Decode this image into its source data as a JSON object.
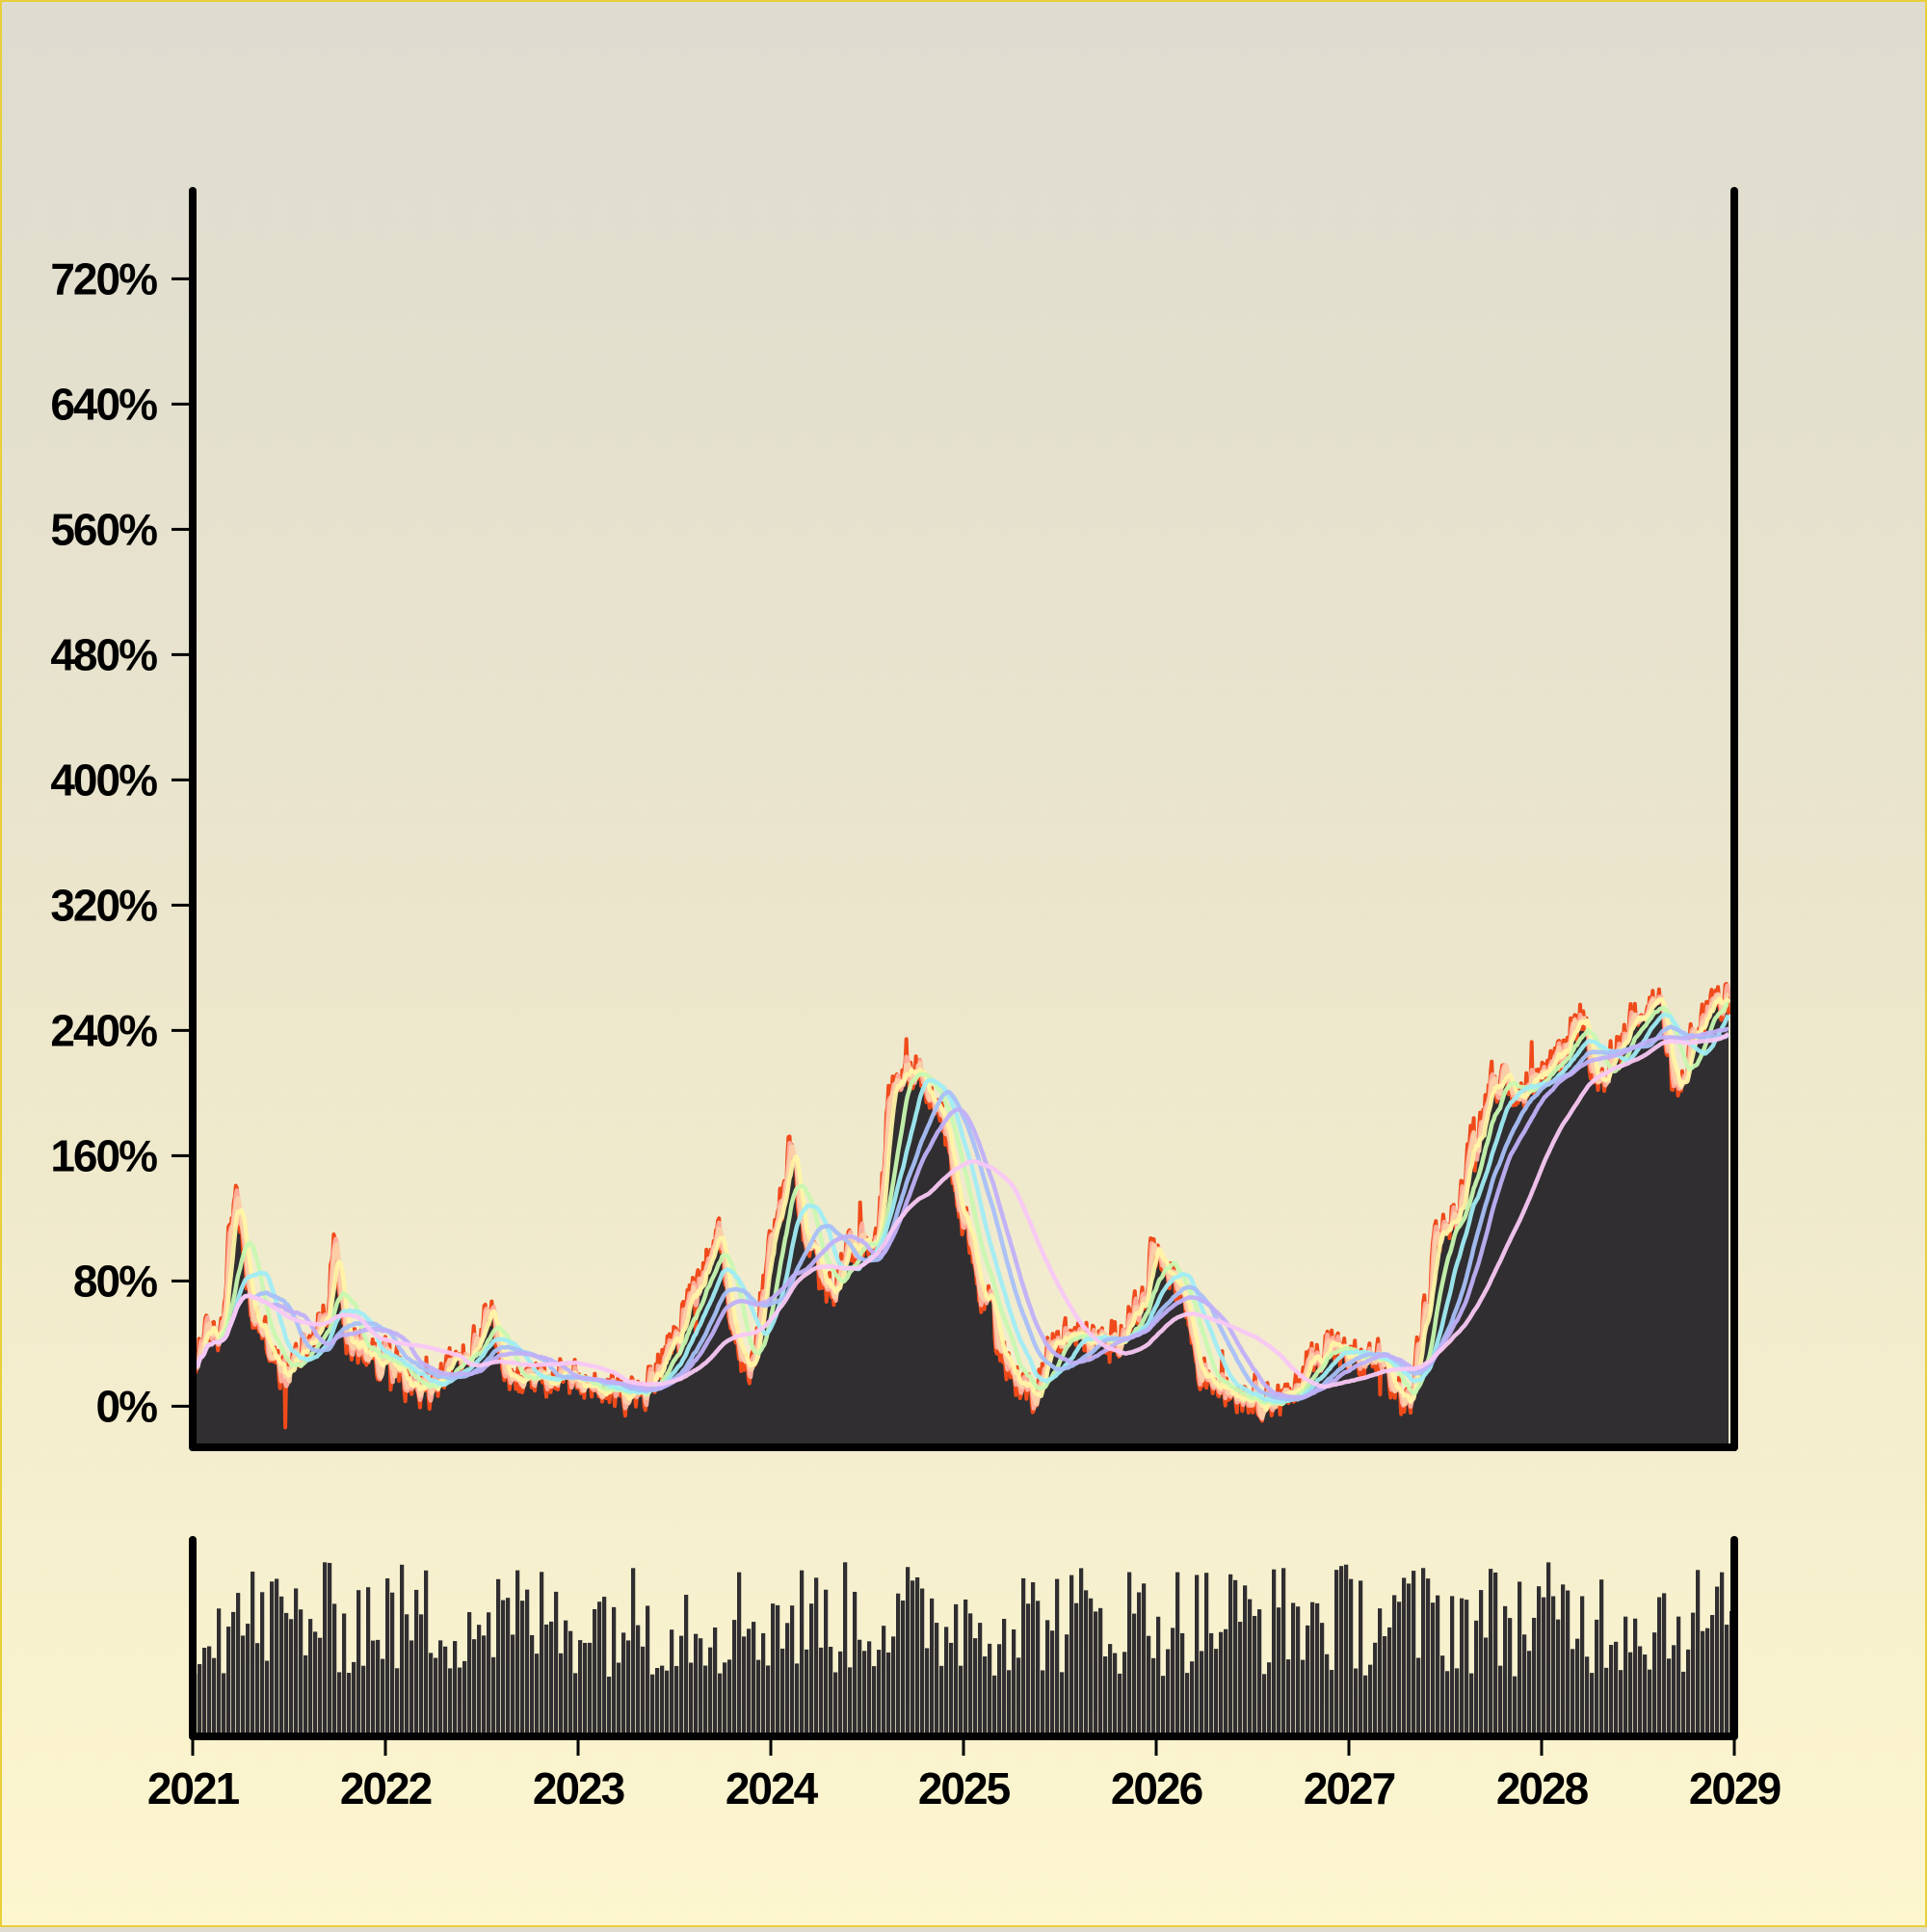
{
  "chart_data": {
    "type": "line",
    "title": "",
    "xlabel": "",
    "ylabel": "",
    "x_tick_labels": [
      "2021",
      "2022",
      "2023",
      "2024",
      "2025",
      "2026",
      "2027",
      "2028",
      "2029"
    ],
    "y_tick_labels": [
      "0%",
      "80%",
      "160%",
      "240%",
      "320%",
      "400%",
      "480%",
      "560%",
      "640%",
      "720%"
    ],
    "y_tick_values": [
      0,
      80,
      160,
      240,
      320,
      400,
      480,
      560,
      640,
      720
    ],
    "xlim": [
      2021,
      2029
    ],
    "ylim": [
      -25,
      775
    ],
    "grid": false,
    "legend": "none",
    "series_colors": {
      "price": "#f04a1a",
      "area": "#302e30",
      "ma": [
        "#ffb0a0",
        "#fbd0a8",
        "#fff4a6",
        "#c8f8b0",
        "#a0ecf4",
        "#a8c0f8",
        "#c0b0f8",
        "#f8c8f4"
      ]
    },
    "price_anchors": [
      [
        2021.0,
        20
      ],
      [
        2021.05,
        45
      ],
      [
        2021.13,
        45
      ],
      [
        2021.22,
        130
      ],
      [
        2021.32,
        55
      ],
      [
        2021.48,
        20
      ],
      [
        2021.58,
        40
      ],
      [
        2021.7,
        60
      ],
      [
        2021.73,
        100
      ],
      [
        2021.8,
        40
      ],
      [
        2022.0,
        30
      ],
      [
        2022.2,
        10
      ],
      [
        2022.4,
        30
      ],
      [
        2022.55,
        55
      ],
      [
        2022.65,
        10
      ],
      [
        2022.8,
        20
      ],
      [
        2023.0,
        15
      ],
      [
        2023.2,
        10
      ],
      [
        2023.3,
        5
      ],
      [
        2023.5,
        40
      ],
      [
        2023.6,
        75
      ],
      [
        2023.72,
        110
      ],
      [
        2023.8,
        50
      ],
      [
        2023.88,
        20
      ],
      [
        2024.0,
        100
      ],
      [
        2024.05,
        130
      ],
      [
        2024.1,
        160
      ],
      [
        2024.2,
        100
      ],
      [
        2024.3,
        70
      ],
      [
        2024.4,
        100
      ],
      [
        2024.55,
        110
      ],
      [
        2024.62,
        200
      ],
      [
        2024.75,
        215
      ],
      [
        2024.88,
        185
      ],
      [
        2025.0,
        120
      ],
      [
        2025.1,
        70
      ],
      [
        2025.25,
        20
      ],
      [
        2025.35,
        10
      ],
      [
        2025.5,
        45
      ],
      [
        2025.75,
        40
      ],
      [
        2025.9,
        60
      ],
      [
        2026.0,
        100
      ],
      [
        2026.1,
        80
      ],
      [
        2026.25,
        20
      ],
      [
        2026.4,
        10
      ],
      [
        2026.55,
        5
      ],
      [
        2026.7,
        5
      ],
      [
        2026.8,
        30
      ],
      [
        2026.9,
        40
      ],
      [
        2027.0,
        30
      ],
      [
        2027.15,
        30
      ],
      [
        2027.25,
        10
      ],
      [
        2027.3,
        0
      ],
      [
        2027.4,
        60
      ],
      [
        2027.45,
        110
      ],
      [
        2027.55,
        120
      ],
      [
        2027.65,
        170
      ],
      [
        2027.75,
        210
      ],
      [
        2027.85,
        200
      ],
      [
        2028.0,
        210
      ],
      [
        2028.1,
        220
      ],
      [
        2028.2,
        250
      ],
      [
        2028.3,
        200
      ],
      [
        2028.4,
        230
      ],
      [
        2028.5,
        255
      ],
      [
        2028.6,
        260
      ],
      [
        2028.7,
        200
      ],
      [
        2028.8,
        240
      ],
      [
        2028.9,
        260
      ],
      [
        2028.97,
        255
      ]
    ],
    "moving_average_windows_days": [
      5,
      10,
      20,
      50,
      80,
      120,
      150,
      250
    ],
    "volume": {
      "range": [
        0,
        1
      ],
      "level_approx": 0.6,
      "min_approx": 0.15,
      "max_approx": 1.0
    }
  }
}
